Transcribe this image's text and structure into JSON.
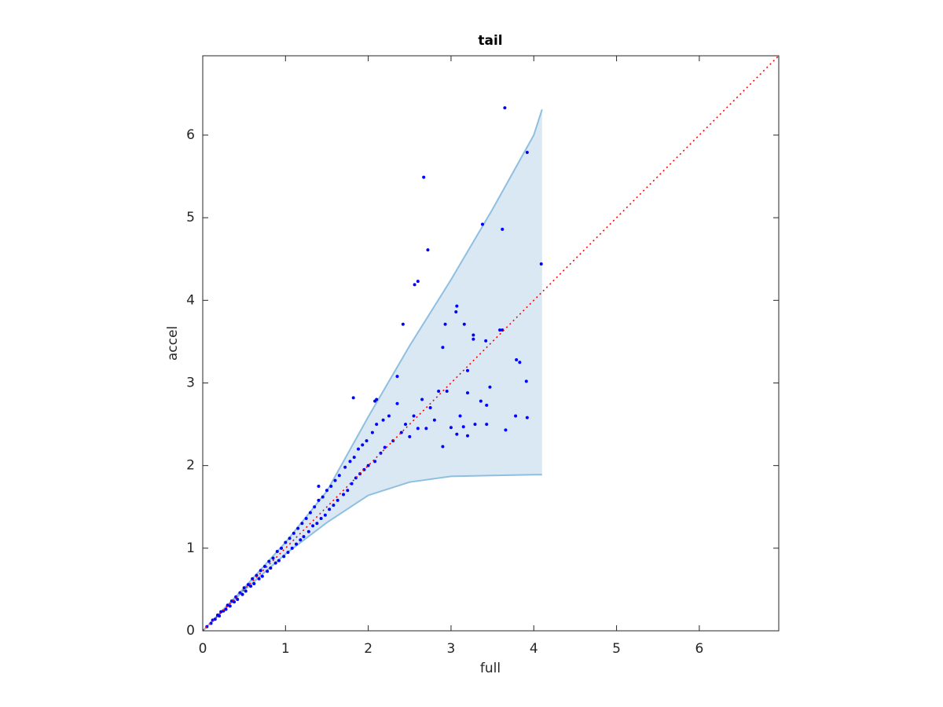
{
  "chart_data": {
    "type": "scatter",
    "title": "tail",
    "x_label": "full",
    "y_label": "accel",
    "xlim": [
      0,
      6.96
    ],
    "ylim": [
      0,
      6.96
    ],
    "xticks": [
      0,
      1,
      2,
      3,
      4,
      5,
      6
    ],
    "yticks": [
      0,
      1,
      2,
      3,
      4,
      5,
      6
    ],
    "grid": false,
    "color": "#0000ff",
    "x": [
      3.65,
      3.92,
      2.67,
      3.38,
      3.62,
      2.72,
      4.09,
      2.6,
      2.56,
      3.07,
      3.06,
      2.42,
      3.16,
      2.93,
      3.59,
      3.62,
      3.27,
      3.27,
      3.42,
      3.79,
      3.83,
      2.9,
      3.2,
      2.35,
      3.91,
      3.47,
      3.2,
      2.95,
      3.36,
      3.43,
      3.29,
      3.43,
      3.78,
      3.66,
      3.92,
      3.11,
      3.15,
      3.07,
      3.2,
      2.9,
      3.0,
      0.05,
      0.1,
      0.12,
      0.15,
      0.18,
      0.2,
      0.22,
      0.25,
      0.28,
      0.3,
      0.33,
      0.35,
      0.38,
      0.4,
      0.42,
      0.45,
      0.48,
      0.5,
      0.52,
      0.55,
      0.58,
      0.6,
      0.62,
      0.65,
      0.68,
      0.7,
      0.72,
      0.75,
      0.78,
      0.8,
      0.82,
      0.85,
      0.88,
      0.9,
      0.92,
      0.95,
      0.98,
      1.0,
      1.03,
      1.05,
      1.08,
      1.1,
      1.13,
      1.15,
      1.18,
      1.2,
      1.22,
      1.25,
      1.28,
      1.3,
      1.33,
      1.35,
      1.38,
      1.4,
      1.43,
      1.45,
      1.48,
      1.5,
      1.53,
      1.55,
      1.58,
      1.6,
      1.63,
      1.65,
      1.7,
      1.72,
      1.75,
      1.78,
      1.8,
      1.83,
      1.85,
      1.88,
      1.9,
      1.93,
      1.95,
      1.98,
      2.0,
      2.05,
      2.08,
      2.1,
      2.15,
      2.18,
      2.2,
      2.25,
      2.3,
      2.35,
      2.4,
      2.45,
      2.5,
      2.55,
      2.6,
      2.65,
      2.7,
      2.75,
      2.8,
      2.85,
      1.4,
      1.82,
      2.08,
      2.1
    ],
    "values": [
      6.33,
      5.79,
      5.49,
      4.92,
      4.86,
      4.61,
      4.44,
      4.23,
      4.19,
      3.93,
      3.86,
      3.71,
      3.71,
      3.71,
      3.64,
      3.64,
      3.58,
      3.53,
      3.51,
      3.28,
      3.25,
      3.43,
      3.15,
      3.08,
      3.02,
      2.95,
      2.88,
      2.9,
      2.78,
      2.73,
      2.5,
      2.5,
      2.6,
      2.43,
      2.58,
      2.6,
      2.47,
      2.38,
      2.36,
      2.23,
      2.46,
      0.05,
      0.09,
      0.13,
      0.14,
      0.19,
      0.18,
      0.23,
      0.24,
      0.26,
      0.31,
      0.3,
      0.36,
      0.35,
      0.41,
      0.38,
      0.46,
      0.44,
      0.52,
      0.48,
      0.56,
      0.54,
      0.63,
      0.57,
      0.67,
      0.63,
      0.73,
      0.66,
      0.78,
      0.72,
      0.84,
      0.76,
      0.88,
      0.82,
      0.96,
      0.85,
      1.0,
      0.9,
      1.07,
      0.95,
      1.12,
      1.0,
      1.18,
      1.05,
      1.24,
      1.1,
      1.3,
      1.14,
      1.36,
      1.2,
      1.43,
      1.27,
      1.5,
      1.3,
      1.58,
      1.36,
      1.62,
      1.4,
      1.7,
      1.47,
      1.75,
      1.52,
      1.82,
      1.58,
      1.88,
      1.65,
      1.98,
      1.7,
      2.05,
      1.78,
      2.1,
      1.85,
      2.2,
      1.9,
      2.25,
      1.95,
      2.3,
      2.0,
      2.4,
      2.05,
      2.5,
      2.15,
      2.55,
      2.22,
      2.6,
      2.3,
      2.75,
      2.4,
      2.5,
      2.35,
      2.6,
      2.45,
      2.8,
      2.45,
      2.7,
      2.55,
      2.9,
      1.75,
      2.82,
      2.78,
      2.8
    ],
    "band": {
      "x": [
        0,
        0.5,
        1,
        1.5,
        2,
        2.5,
        3,
        3.5,
        4,
        4.1
      ],
      "upper": [
        0,
        0.52,
        1.07,
        1.69,
        2.59,
        3.45,
        4.25,
        5.1,
        6.0,
        6.31
      ],
      "lower": [
        0,
        0.49,
        0.93,
        1.31,
        1.64,
        1.8,
        1.87,
        1.88,
        1.89,
        1.89
      ],
      "color": "#dae8f4",
      "edge_color": "#8fbfe0"
    },
    "reference_line": {
      "x": [
        0,
        6.96
      ],
      "y": [
        0,
        6.96
      ],
      "color": "#ff0000",
      "style": "dotted"
    }
  }
}
